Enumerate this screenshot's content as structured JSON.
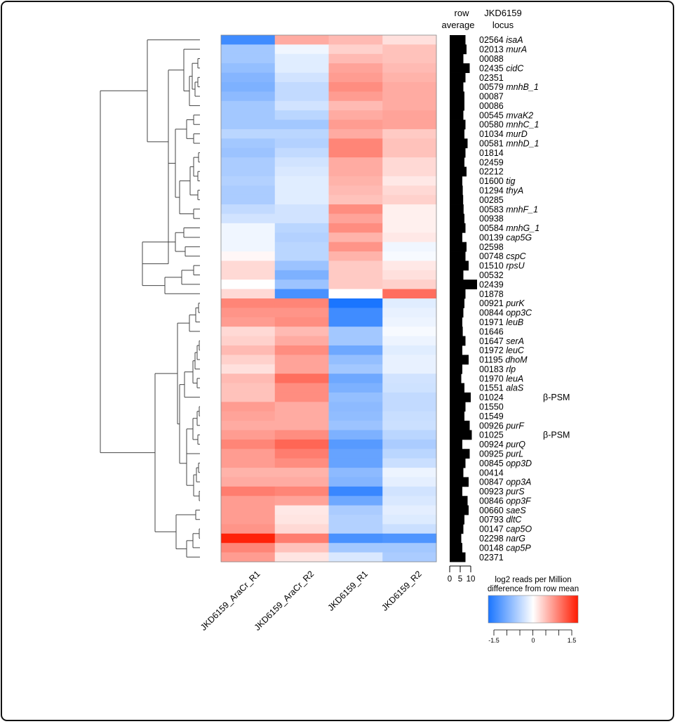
{
  "chart_data": {
    "type": "heatmap",
    "title": "",
    "columns": [
      "JKD6159_AraCr_R1",
      "JKD6159_AraCr_R2",
      "JKD6159_R1",
      "JKD6159_R2"
    ],
    "row_average_header": [
      "row",
      "average"
    ],
    "locus_header": [
      "JKD6159",
      "locus"
    ],
    "rows": [
      {
        "locus": "02564",
        "gene": "isaA",
        "note": "",
        "avg": 7.5,
        "values": [
          -1.25,
          0.55,
          0.45,
          0.2
        ]
      },
      {
        "locus": "02013",
        "gene": "murA",
        "note": "",
        "avg": 8.0,
        "values": [
          -0.6,
          -0.1,
          0.3,
          0.4
        ]
      },
      {
        "locus": "00088",
        "gene": "",
        "note": "",
        "avg": 6.5,
        "values": [
          -0.6,
          -0.2,
          0.45,
          0.4
        ]
      },
      {
        "locus": "02435",
        "gene": "cidC",
        "note": "",
        "avg": 9.5,
        "values": [
          -0.7,
          -0.2,
          0.6,
          0.45
        ]
      },
      {
        "locus": "02351",
        "gene": "",
        "note": "",
        "avg": 7.5,
        "values": [
          -0.8,
          -0.3,
          0.65,
          0.5
        ]
      },
      {
        "locus": "00579",
        "gene": "mnhB_1",
        "note": "",
        "avg": 6.5,
        "values": [
          -0.85,
          -0.4,
          0.75,
          0.55
        ]
      },
      {
        "locus": "00087",
        "gene": "",
        "note": "",
        "avg": 7.0,
        "values": [
          -0.75,
          -0.4,
          0.65,
          0.55
        ]
      },
      {
        "locus": "00086",
        "gene": "",
        "note": "",
        "avg": 7.0,
        "values": [
          -0.6,
          -0.3,
          0.45,
          0.55
        ]
      },
      {
        "locus": "00545",
        "gene": "mvaK2",
        "note": "",
        "avg": 6.5,
        "values": [
          -0.6,
          -0.45,
          0.55,
          0.6
        ]
      },
      {
        "locus": "00580",
        "gene": "mnhC_1",
        "note": "",
        "avg": 7.5,
        "values": [
          -0.6,
          -0.6,
          0.65,
          0.6
        ]
      },
      {
        "locus": "01034",
        "gene": "murD",
        "note": "",
        "avg": 7.0,
        "values": [
          -0.45,
          -0.45,
          0.55,
          0.35
        ]
      },
      {
        "locus": "00581",
        "gene": "mnhD_1",
        "note": "",
        "avg": 8.5,
        "values": [
          -0.6,
          -0.5,
          0.8,
          0.4
        ]
      },
      {
        "locus": "01814",
        "gene": "",
        "note": "",
        "avg": 7.5,
        "values": [
          -0.65,
          -0.4,
          0.8,
          0.4
        ]
      },
      {
        "locus": "02459",
        "gene": "",
        "note": "",
        "avg": 7.0,
        "values": [
          -0.55,
          -0.3,
          0.55,
          0.25
        ]
      },
      {
        "locus": "02212",
        "gene": "",
        "note": "",
        "avg": 8.0,
        "values": [
          -0.55,
          -0.25,
          0.55,
          0.25
        ]
      },
      {
        "locus": "01600",
        "gene": "tig",
        "note": "",
        "avg": 6.0,
        "values": [
          -0.5,
          -0.2,
          0.5,
          0.15
        ]
      },
      {
        "locus": "01294",
        "gene": "thyA",
        "note": "",
        "avg": 6.2,
        "values": [
          -0.55,
          -0.2,
          0.45,
          0.25
        ]
      },
      {
        "locus": "00285",
        "gene": "",
        "note": "",
        "avg": 6.4,
        "values": [
          -0.55,
          -0.2,
          0.4,
          0.3
        ]
      },
      {
        "locus": "00583",
        "gene": "mnhF_1",
        "note": "",
        "avg": 6.6,
        "values": [
          -0.4,
          -0.3,
          0.75,
          0.1
        ]
      },
      {
        "locus": "00938",
        "gene": "",
        "note": "",
        "avg": 7.0,
        "values": [
          -0.3,
          -0.3,
          0.6,
          0.1
        ]
      },
      {
        "locus": "00584",
        "gene": "mnhG_1",
        "note": "",
        "avg": 7.5,
        "values": [
          -0.1,
          -0.45,
          0.75,
          0.1
        ]
      },
      {
        "locus": "00139",
        "gene": "cap5G",
        "note": "",
        "avg": 6.0,
        "values": [
          -0.1,
          -0.5,
          0.5,
          0.15
        ]
      },
      {
        "locus": "02598",
        "gene": "",
        "note": "",
        "avg": 8.0,
        "values": [
          -0.1,
          -0.45,
          0.7,
          -0.1
        ]
      },
      {
        "locus": "00748",
        "gene": "cspC",
        "note": "",
        "avg": 7.5,
        "values": [
          0.05,
          -0.45,
          0.5,
          -0.05
        ]
      },
      {
        "locus": "01510",
        "gene": "rpsU",
        "note": "",
        "avg": 9.0,
        "values": [
          0.25,
          -0.65,
          0.35,
          0.15
        ]
      },
      {
        "locus": "00532",
        "gene": "",
        "note": "",
        "avg": 6.5,
        "values": [
          0.25,
          -0.85,
          0.35,
          0.2
        ]
      },
      {
        "locus": "02439",
        "gene": "",
        "note": "",
        "avg": 13.0,
        "values": [
          0.0,
          -0.65,
          0.35,
          0.3
        ]
      },
      {
        "locus": "01878",
        "gene": "",
        "note": "",
        "avg": 7.5,
        "values": [
          0.25,
          -1.2,
          0.0,
          0.95
        ]
      },
      {
        "locus": "00921",
        "gene": "purK",
        "note": "",
        "avg": 7.0,
        "values": [
          0.8,
          0.8,
          -1.5,
          -0.2
        ]
      },
      {
        "locus": "00844",
        "gene": "opp3C",
        "note": "",
        "avg": 6.5,
        "values": [
          0.7,
          0.7,
          -1.25,
          -0.15
        ]
      },
      {
        "locus": "01971",
        "gene": "leuB",
        "note": "",
        "avg": 6.0,
        "values": [
          0.65,
          0.75,
          -1.25,
          -0.12
        ]
      },
      {
        "locus": "01646",
        "gene": "",
        "note": "",
        "avg": 6.2,
        "values": [
          0.25,
          0.45,
          -0.6,
          -0.05
        ]
      },
      {
        "locus": "01647",
        "gene": "serA",
        "note": "",
        "avg": 7.5,
        "values": [
          0.3,
          0.55,
          -0.6,
          -0.12
        ]
      },
      {
        "locus": "01972",
        "gene": "leuC",
        "note": "",
        "avg": 6.0,
        "values": [
          0.45,
          0.75,
          -0.95,
          -0.2
        ]
      },
      {
        "locus": "01195",
        "gene": "dhoM",
        "note": "",
        "avg": 9.0,
        "values": [
          0.3,
          0.6,
          -0.7,
          -0.15
        ]
      },
      {
        "locus": "00183",
        "gene": "rlp",
        "note": "",
        "avg": 6.0,
        "values": [
          0.2,
          0.6,
          -0.6,
          -0.15
        ]
      },
      {
        "locus": "01970",
        "gene": "leuA",
        "note": "",
        "avg": 5.5,
        "values": [
          0.45,
          0.95,
          -0.95,
          -0.3
        ]
      },
      {
        "locus": "01551",
        "gene": "alaS",
        "note": "",
        "avg": 7.0,
        "values": [
          0.4,
          0.75,
          -0.85,
          -0.32
        ]
      },
      {
        "locus": "01024",
        "gene": "",
        "note": "β-PSM",
        "avg": 10.0,
        "values": [
          0.4,
          0.75,
          -0.7,
          -0.4
        ]
      },
      {
        "locus": "01550",
        "gene": "",
        "note": "",
        "avg": 7.5,
        "values": [
          0.65,
          0.55,
          -0.75,
          -0.4
        ]
      },
      {
        "locus": "01549",
        "gene": "",
        "note": "",
        "avg": 7.0,
        "values": [
          0.6,
          0.55,
          -0.72,
          -0.36
        ]
      },
      {
        "locus": "00926",
        "gene": "purF",
        "note": "",
        "avg": 9.5,
        "values": [
          0.55,
          0.55,
          -0.65,
          -0.34
        ]
      },
      {
        "locus": "01025",
        "gene": "",
        "note": "β-PSM",
        "avg": 10.5,
        "values": [
          0.65,
          0.75,
          -0.85,
          -0.45
        ]
      },
      {
        "locus": "00924",
        "gene": "purQ",
        "note": "",
        "avg": 6.0,
        "values": [
          0.8,
          1.0,
          -1.1,
          -0.55
        ]
      },
      {
        "locus": "00925",
        "gene": "purL",
        "note": "",
        "avg": 9.5,
        "values": [
          0.65,
          0.85,
          -1.0,
          -0.45
        ]
      },
      {
        "locus": "00845",
        "gene": "opp3D",
        "note": "",
        "avg": 7.5,
        "values": [
          0.65,
          0.75,
          -1.0,
          -0.35
        ]
      },
      {
        "locus": "00414",
        "gene": "",
        "note": "",
        "avg": 6.5,
        "values": [
          0.5,
          0.5,
          -0.75,
          -0.12
        ]
      },
      {
        "locus": "00847",
        "gene": "opp3A",
        "note": "",
        "avg": 9.0,
        "values": [
          0.55,
          0.55,
          -0.8,
          -0.17
        ]
      },
      {
        "locus": "00923",
        "gene": "purS",
        "note": "",
        "avg": 6.0,
        "values": [
          0.85,
          0.8,
          -1.3,
          -0.3
        ]
      },
      {
        "locus": "00846",
        "gene": "opp3F",
        "note": "",
        "avg": 8.5,
        "values": [
          0.65,
          0.6,
          -0.95,
          -0.25
        ]
      },
      {
        "locus": "00660",
        "gene": "saeS",
        "note": "",
        "avg": 9.0,
        "values": [
          0.65,
          0.15,
          -0.55,
          -0.18
        ]
      },
      {
        "locus": "00793",
        "gene": "dltC",
        "note": "",
        "avg": 7.0,
        "values": [
          0.65,
          0.17,
          -0.5,
          -0.22
        ]
      },
      {
        "locus": "00147",
        "gene": "cap5O",
        "note": "",
        "avg": 6.5,
        "values": [
          0.7,
          0.25,
          -0.5,
          -0.35
        ]
      },
      {
        "locus": "02298",
        "gene": "narG",
        "note": "",
        "avg": 5.5,
        "values": [
          1.45,
          0.85,
          -1.2,
          -1.15
        ]
      },
      {
        "locus": "00148",
        "gene": "cap5P",
        "note": "",
        "avg": 6.0,
        "values": [
          0.8,
          0.4,
          -0.6,
          -0.6
        ]
      },
      {
        "locus": "02371",
        "gene": "",
        "note": "",
        "avg": 7.5,
        "values": [
          0.65,
          0.17,
          -0.25,
          -0.55
        ]
      }
    ],
    "row_average_axis": {
      "ticks": [
        "0",
        "5",
        "10"
      ],
      "range": [
        0,
        10
      ]
    },
    "color_scale": {
      "title": [
        "log2 reads per Million",
        "difference from row mean"
      ],
      "range": [
        -1.5,
        1.5
      ],
      "tick_labels": [
        "-1.5",
        "0",
        "1.5"
      ],
      "low_color": "#1a75ff",
      "mid_color": "#ffffff",
      "high_color": "#ff1a00"
    },
    "dendrogram": "hierarchical clustering of rows (two main clusters of 28 rows each)"
  }
}
